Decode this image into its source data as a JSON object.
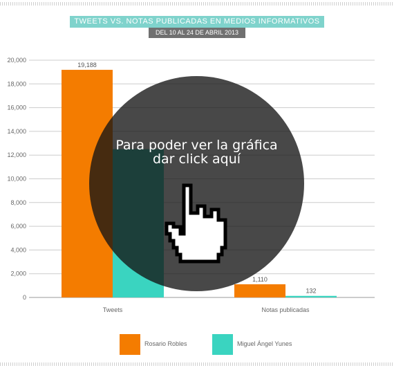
{
  "title": "TWEETS VS. NOTAS PUBLICADAS EN MEDIOS INFORMATIVOS",
  "subtitle": "DEL 10 AL 24 DE ABRIL 2013",
  "overlay": {
    "line1": "Para poder ver la gráfica",
    "line2": "dar click aquí"
  },
  "colors": {
    "rosario": "#f47c00",
    "miguel": "#3ad4c0",
    "title_bg": "#7fd3cc",
    "subtitle_bg": "#707070"
  },
  "icons": {
    "overlay": "pointer-hand-icon"
  },
  "chart_data": {
    "type": "bar",
    "title": "TWEETS VS. NOTAS PUBLICADAS EN MEDIOS INFORMATIVOS",
    "subtitle": "DEL 10 AL 24 DE ABRIL 2013",
    "categories": [
      "Tweets",
      "Notas publicadas"
    ],
    "series": [
      {
        "name": "Rosario Robles",
        "values": [
          19188,
          1110
        ],
        "labels": [
          "19,188",
          "1,110"
        ]
      },
      {
        "name": "Miguel Ángel Yunes",
        "values": [
          12500,
          132
        ],
        "labels": [
          "",
          "132"
        ]
      }
    ],
    "yticks": [
      "0",
      "2,000",
      "4,000",
      "6,000",
      "8,000",
      "10,000",
      "12,000",
      "14,000",
      "16,000",
      "18,000",
      "20,000"
    ],
    "ylim": [
      0,
      20000
    ],
    "grid": true,
    "legend": "bottom",
    "xlabel": "",
    "ylabel": ""
  }
}
